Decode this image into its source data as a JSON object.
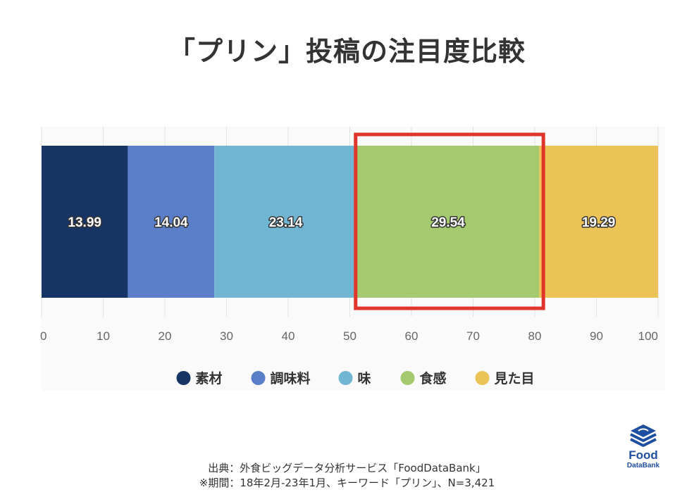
{
  "page": {
    "title": "「プリン」投稿の注目度比較",
    "source_line1": "出典：外食ビッグデータ分析サービス「FoodDataBank」",
    "source_line2": "※期間：18年2月-23年1月、キーワード「プリン」、N=3,421"
  },
  "logo": {
    "word1": "Food",
    "word2": "DataBank",
    "color": "#1f4fa0"
  },
  "chart_data": {
    "type": "bar",
    "orientation": "horizontal",
    "stacked": true,
    "title": "「プリン」投稿の注目度比較",
    "xlim": [
      0,
      100
    ],
    "xticks": [
      "0",
      "10",
      "20",
      "30",
      "40",
      "50",
      "60",
      "70",
      "80",
      "90",
      "100"
    ],
    "grid": true,
    "legend_position": "bottom",
    "highlight_series": "食感",
    "highlight_color": "#e0352b",
    "series": [
      {
        "name": "素材",
        "value": 13.99,
        "label": "13.99",
        "color": "#173564"
      },
      {
        "name": "調味料",
        "value": 14.04,
        "label": "14.04",
        "color": "#5a7fc8"
      },
      {
        "name": "味",
        "value": 23.14,
        "label": "23.14",
        "color": "#70b6d3"
      },
      {
        "name": "食感",
        "value": 29.54,
        "label": "29.54",
        "color": "#a4c96e"
      },
      {
        "name": "見た目",
        "value": 19.29,
        "label": "19.29",
        "color": "#ecc357"
      }
    ]
  }
}
